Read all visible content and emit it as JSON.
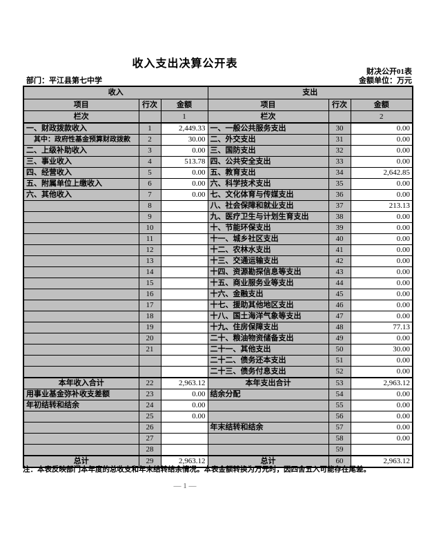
{
  "page": {
    "title": "收入支出决算公开表",
    "form_code": "财决公开01表",
    "department_label": "部门：平江县第七中学",
    "unit_label": "金额单位：万元",
    "note": "注：本表反映部门本年度的总收支和年末结转结余情况。本表金额转换为万元时，因四舍五入可能存在尾差。",
    "page_number": "— 1 —"
  },
  "colors": {
    "cell_gray": "#c0c0c0",
    "border": "#000000",
    "page_bg": "#ffffff"
  },
  "table": {
    "income_header": "收入",
    "expense_header": "支出",
    "col_item": "项目",
    "col_line": "行次",
    "col_amount": "金额",
    "col_index_label": "栏次",
    "income_col_index": "1",
    "expense_col_index": "2",
    "rows": [
      {
        "l": {
          "item": "一、财政拨款收入",
          "line": "1",
          "amt": "2,449.33"
        },
        "r": {
          "item": "一、一般公共服务支出",
          "line": "30",
          "amt": "0.00"
        }
      },
      {
        "l": {
          "item": "其中：政府性基金预算财政拨款",
          "line": "2",
          "amt": "30.00",
          "small": true
        },
        "r": {
          "item": "二、外交支出",
          "line": "31",
          "amt": "0.00"
        }
      },
      {
        "l": {
          "item": "二、上级补助收入",
          "line": "3",
          "amt": "0.00"
        },
        "r": {
          "item": "三、国防支出",
          "line": "32",
          "amt": "0.00"
        }
      },
      {
        "l": {
          "item": "三、事业收入",
          "line": "4",
          "amt": "513.78"
        },
        "r": {
          "item": "四、公共安全支出",
          "line": "33",
          "amt": "0.00"
        }
      },
      {
        "l": {
          "item": "四、经营收入",
          "line": "5",
          "amt": "0.00"
        },
        "r": {
          "item": "五、教育支出",
          "line": "34",
          "amt": "2,642.85"
        }
      },
      {
        "l": {
          "item": "五、附属单位上缴收入",
          "line": "6",
          "amt": "0.00"
        },
        "r": {
          "item": "六、科学技术支出",
          "line": "35",
          "amt": "0.00"
        }
      },
      {
        "l": {
          "item": "六、其他收入",
          "line": "7",
          "amt": "0.00"
        },
        "r": {
          "item": "七、文化体育与传媒支出",
          "line": "36",
          "amt": "0.00"
        }
      },
      {
        "l": {
          "item": "",
          "line": "8",
          "amt": ""
        },
        "r": {
          "item": "八、社会保障和就业支出",
          "line": "37",
          "amt": "213.13"
        }
      },
      {
        "l": {
          "item": "",
          "line": "9",
          "amt": ""
        },
        "r": {
          "item": "九、医疗卫生与计划生育支出",
          "line": "38",
          "amt": "0.00"
        }
      },
      {
        "l": {
          "item": "",
          "line": "10",
          "amt": ""
        },
        "r": {
          "item": "十、节能环保支出",
          "line": "39",
          "amt": "0.00"
        }
      },
      {
        "l": {
          "item": "",
          "line": "11",
          "amt": ""
        },
        "r": {
          "item": "十一、城乡社区支出",
          "line": "40",
          "amt": "0.00"
        }
      },
      {
        "l": {
          "item": "",
          "line": "12",
          "amt": ""
        },
        "r": {
          "item": "十二、农林水支出",
          "line": "41",
          "amt": "0.00"
        }
      },
      {
        "l": {
          "item": "",
          "line": "13",
          "amt": ""
        },
        "r": {
          "item": "十三、交通运输支出",
          "line": "42",
          "amt": "0.00"
        }
      },
      {
        "l": {
          "item": "",
          "line": "14",
          "amt": ""
        },
        "r": {
          "item": "十四、资源勘探信息等支出",
          "line": "43",
          "amt": "0.00"
        }
      },
      {
        "l": {
          "item": "",
          "line": "15",
          "amt": ""
        },
        "r": {
          "item": "十五、商业服务业等支出",
          "line": "44",
          "amt": "0.00"
        }
      },
      {
        "l": {
          "item": "",
          "line": "16",
          "amt": ""
        },
        "r": {
          "item": "十六、金融支出",
          "line": "45",
          "amt": "0.00"
        }
      },
      {
        "l": {
          "item": "",
          "line": "17",
          "amt": ""
        },
        "r": {
          "item": "十七、援助其他地区支出",
          "line": "46",
          "amt": "0.00"
        }
      },
      {
        "l": {
          "item": "",
          "line": "18",
          "amt": ""
        },
        "r": {
          "item": "十八、国土海洋气象等支出",
          "line": "47",
          "amt": "0.00"
        }
      },
      {
        "l": {
          "item": "",
          "line": "19",
          "amt": ""
        },
        "r": {
          "item": "十九、住房保障支出",
          "line": "48",
          "amt": "77.13"
        }
      },
      {
        "l": {
          "item": "",
          "line": "20",
          "amt": ""
        },
        "r": {
          "item": "二十、粮油物资储备支出",
          "line": "49",
          "amt": "0.00"
        }
      },
      {
        "l": {
          "item": "",
          "line": "21",
          "amt": ""
        },
        "r": {
          "item": "二十一、其他支出",
          "line": "50",
          "amt": "30.00"
        }
      },
      {
        "l": {
          "item": "",
          "line": "",
          "amt": ""
        },
        "r": {
          "item": "二十二、债务还本支出",
          "line": "51",
          "amt": "0.00"
        }
      },
      {
        "l": {
          "item": "",
          "line": "",
          "amt": ""
        },
        "r": {
          "item": "二十三、债务付息支出",
          "line": "52",
          "amt": "0.00"
        }
      },
      {
        "thick": true,
        "l": {
          "item": "本年收入合计",
          "line": "22",
          "amt": "2,963.12",
          "total": true
        },
        "r": {
          "item": "本年支出合计",
          "line": "53",
          "amt": "2,963.12",
          "total": true
        }
      },
      {
        "l": {
          "item": "用事业基金弥补收支差额",
          "line": "23",
          "amt": "0.00"
        },
        "r": {
          "item": "结余分配",
          "line": "54",
          "amt": "0.00"
        }
      },
      {
        "l": {
          "item": "年初结转和结余",
          "line": "24",
          "amt": "0.00"
        },
        "r": {
          "item": "",
          "line": "55",
          "amt": "0.00"
        }
      },
      {
        "l": {
          "item": "",
          "line": "25",
          "amt": "0.00"
        },
        "r": {
          "item": "",
          "line": "56",
          "amt": "0.00"
        }
      },
      {
        "l": {
          "item": "",
          "line": "26",
          "amt": ""
        },
        "r": {
          "item": "年末结转和结余",
          "line": "57",
          "amt": "0.00"
        }
      },
      {
        "l": {
          "item": "",
          "line": "27",
          "amt": ""
        },
        "r": {
          "item": "",
          "line": "58",
          "amt": "0.00"
        }
      },
      {
        "l": {
          "item": "",
          "line": "28",
          "amt": ""
        },
        "r": {
          "item": "",
          "line": "59",
          "amt": ""
        }
      },
      {
        "thick": true,
        "l": {
          "item": "总计",
          "line": "29",
          "amt": "2,963.12",
          "total": true
        },
        "r": {
          "item": "总计",
          "line": "60",
          "amt": "2,963.12",
          "total": true
        }
      }
    ]
  }
}
